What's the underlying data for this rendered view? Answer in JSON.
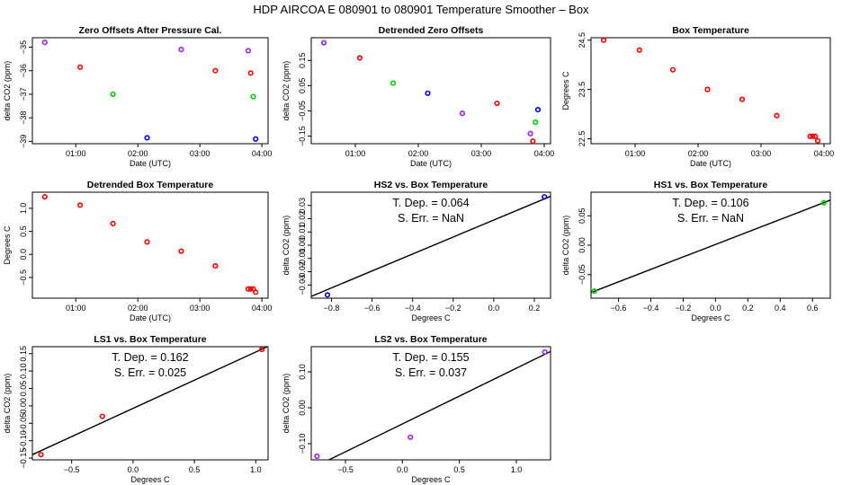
{
  "figure_title": "HDP   AIRCOA E   080901 to 080901   Temperature Smoother – Box",
  "chart_data": [
    {
      "id": "p1",
      "type": "scatter",
      "title": "Zero Offsets After Pressure Cal.",
      "xlabel": "Date (UTC)",
      "ylabel": "delta CO2 (ppm)",
      "xlim": [
        0.3,
        4.1
      ],
      "ylim": [
        -39.1,
        -34.6
      ],
      "xticks": [
        1,
        2,
        3,
        4
      ],
      "xticklabels": [
        "01:00",
        "02:00",
        "03:00",
        "04:00"
      ],
      "yticks": [
        -39,
        -38,
        -37,
        -36,
        -35
      ],
      "yticklabels": [
        "−39",
        "−38",
        "−37",
        "−36",
        "−35"
      ],
      "points": [
        {
          "x": 0.5,
          "y": -34.8,
          "color": "#a020f0"
        },
        {
          "x": 1.07,
          "y": -35.85,
          "color": "#ff0000"
        },
        {
          "x": 1.6,
          "y": -37.0,
          "color": "#00cc00"
        },
        {
          "x": 2.15,
          "y": -38.85,
          "color": "#0000ff"
        },
        {
          "x": 2.7,
          "y": -35.1,
          "color": "#a020f0"
        },
        {
          "x": 3.25,
          "y": -36.0,
          "color": "#ff0000"
        },
        {
          "x": 3.78,
          "y": -35.15,
          "color": "#a020f0"
        },
        {
          "x": 3.82,
          "y": -36.1,
          "color": "#ff0000"
        },
        {
          "x": 3.86,
          "y": -37.1,
          "color": "#00cc00"
        },
        {
          "x": 3.9,
          "y": -38.9,
          "color": "#0000ff"
        }
      ]
    },
    {
      "id": "p2",
      "type": "scatter",
      "title": "Detrended Zero Offsets",
      "xlabel": "Date (UTC)",
      "ylabel": "delta CO2 (ppm)",
      "xlim": [
        0.3,
        4.1
      ],
      "ylim": [
        -0.18,
        0.24
      ],
      "xticks": [
        1,
        2,
        3,
        4
      ],
      "xticklabels": [
        "01:00",
        "02:00",
        "03:00",
        "04:00"
      ],
      "yticks": [
        -0.15,
        -0.05,
        0.05,
        0.15
      ],
      "yticklabels": [
        "−0.15",
        "−0.05",
        "0.05",
        "0.15"
      ],
      "points": [
        {
          "x": 0.5,
          "y": 0.22,
          "color": "#a020f0"
        },
        {
          "x": 1.07,
          "y": 0.16,
          "color": "#ff0000"
        },
        {
          "x": 1.6,
          "y": 0.06,
          "color": "#00cc00"
        },
        {
          "x": 2.15,
          "y": 0.02,
          "color": "#0000ff"
        },
        {
          "x": 2.7,
          "y": -0.06,
          "color": "#a020f0"
        },
        {
          "x": 3.25,
          "y": -0.02,
          "color": "#ff0000"
        },
        {
          "x": 3.78,
          "y": -0.14,
          "color": "#a020f0"
        },
        {
          "x": 3.82,
          "y": -0.17,
          "color": "#ff0000"
        },
        {
          "x": 3.86,
          "y": -0.095,
          "color": "#00cc00"
        },
        {
          "x": 3.9,
          "y": -0.045,
          "color": "#0000ff"
        }
      ]
    },
    {
      "id": "p3",
      "type": "scatter",
      "title": "Box Temperature",
      "xlabel": "Date (UTC)",
      "ylabel": "Degrees C",
      "xlim": [
        0.3,
        4.1
      ],
      "ylim": [
        22.4,
        24.55
      ],
      "xticks": [
        1,
        2,
        3,
        4
      ],
      "xticklabels": [
        "01:00",
        "02:00",
        "03:00",
        "04:00"
      ],
      "yticks": [
        22.5,
        23.5,
        24.5
      ],
      "yticklabels": [
        "22.5",
        "23.5",
        "24.5"
      ],
      "points": [
        {
          "x": 0.5,
          "y": 24.5,
          "color": "#ff0000"
        },
        {
          "x": 1.07,
          "y": 24.3,
          "color": "#ff0000"
        },
        {
          "x": 1.6,
          "y": 23.9,
          "color": "#ff0000"
        },
        {
          "x": 2.15,
          "y": 23.5,
          "color": "#ff0000"
        },
        {
          "x": 2.7,
          "y": 23.3,
          "color": "#ff0000"
        },
        {
          "x": 3.25,
          "y": 22.97,
          "color": "#ff0000"
        },
        {
          "x": 3.78,
          "y": 22.55,
          "color": "#ff0000"
        },
        {
          "x": 3.82,
          "y": 22.55,
          "color": "#ff0000"
        },
        {
          "x": 3.86,
          "y": 22.55,
          "color": "#ff0000"
        },
        {
          "x": 3.9,
          "y": 22.46,
          "color": "#ff0000"
        }
      ]
    },
    {
      "id": "p4",
      "type": "scatter",
      "title": "Detrended Box Temperature",
      "xlabel": "Date (UTC)",
      "ylabel": "Degrees C",
      "xlim": [
        0.3,
        4.1
      ],
      "ylim": [
        -0.95,
        1.35
      ],
      "xticks": [
        1,
        2,
        3,
        4
      ],
      "xticklabels": [
        "01:00",
        "02:00",
        "03:00",
        "04:00"
      ],
      "yticks": [
        -0.5,
        0.0,
        0.5,
        1.0
      ],
      "yticklabels": [
        "−0.5",
        "0.0",
        "0.5",
        "1.0"
      ],
      "points": [
        {
          "x": 0.5,
          "y": 1.25,
          "color": "#ff0000"
        },
        {
          "x": 1.07,
          "y": 1.07,
          "color": "#ff0000"
        },
        {
          "x": 1.6,
          "y": 0.67,
          "color": "#ff0000"
        },
        {
          "x": 2.15,
          "y": 0.27,
          "color": "#ff0000"
        },
        {
          "x": 2.7,
          "y": 0.07,
          "color": "#ff0000"
        },
        {
          "x": 3.25,
          "y": -0.25,
          "color": "#ff0000"
        },
        {
          "x": 3.78,
          "y": -0.75,
          "color": "#ff0000"
        },
        {
          "x": 3.82,
          "y": -0.75,
          "color": "#ff0000"
        },
        {
          "x": 3.86,
          "y": -0.75,
          "color": "#ff0000"
        },
        {
          "x": 3.9,
          "y": -0.82,
          "color": "#ff0000"
        }
      ]
    },
    {
      "id": "p5",
      "type": "scatter",
      "title": "HS2 vs. Box Temperature",
      "xlabel": "Degrees C",
      "ylabel": "delta CO2 (ppm)",
      "annotation1": "T. Dep. =  0.064",
      "annotation2": "S. Err. =  NaN",
      "xlim": [
        -0.9,
        0.28
      ],
      "ylim": [
        -0.04,
        0.04
      ],
      "xticks": [
        -0.8,
        -0.6,
        -0.4,
        -0.2,
        0.0,
        0.2
      ],
      "xticklabels": [
        "−0.8",
        "−0.6",
        "−0.4",
        "−0.2",
        "0.0",
        "0.2"
      ],
      "yticks": [
        -0.03,
        -0.02,
        -0.01,
        0.0,
        0.01,
        0.02,
        0.03
      ],
      "yticklabels": [
        "−0.03",
        "−0.02",
        "−0.01",
        "0.00",
        "0.01",
        "0.02",
        "0.03"
      ],
      "fit": {
        "slope": 0.064,
        "intercept": 0.01898
      },
      "points": [
        {
          "x": -0.82,
          "y": -0.0375,
          "color": "#0000ff"
        },
        {
          "x": 0.25,
          "y": 0.0365,
          "color": "#0000ff"
        }
      ]
    },
    {
      "id": "p6",
      "type": "scatter",
      "title": "HS1 vs. Box Temperature",
      "xlabel": "Degrees C",
      "ylabel": "delta CO2 (ppm)",
      "annotation1": "T. Dep. =  0.106",
      "annotation2": "S. Err. =  NaN",
      "xlim": [
        -0.77,
        0.71
      ],
      "ylim": [
        -0.09,
        0.09
      ],
      "xticks": [
        -0.6,
        -0.4,
        -0.2,
        0.0,
        0.2,
        0.4,
        0.6
      ],
      "xticklabels": [
        "−0.6",
        "−0.4",
        "−0.2",
        "0.0",
        "0.2",
        "0.4",
        "0.6"
      ],
      "yticks": [
        -0.05,
        0.0,
        0.05
      ],
      "yticklabels": [
        "−0.05",
        "0.00",
        "0.05"
      ],
      "fit": {
        "slope": 0.106,
        "intercept": 0.00128
      },
      "points": [
        {
          "x": -0.75,
          "y": -0.078,
          "color": "#00cc00"
        },
        {
          "x": 0.67,
          "y": 0.072,
          "color": "#00cc00"
        }
      ]
    },
    {
      "id": "p7",
      "type": "scatter",
      "title": "LS1 vs. Box Temperature",
      "xlabel": "Degrees C",
      "ylabel": "delta CO2 (ppm)",
      "annotation1": "T. Dep. =  0.162",
      "annotation2": "S. Err. =  0.025",
      "xlim": [
        -0.82,
        1.1
      ],
      "ylim": [
        -0.155,
        0.17
      ],
      "xticks": [
        -0.5,
        0.0,
        0.5,
        1.0
      ],
      "xticklabels": [
        "−0.5",
        "0.0",
        "0.5",
        "1.0"
      ],
      "yticks": [
        -0.15,
        -0.1,
        -0.05,
        0.0,
        0.05,
        0.1,
        0.15
      ],
      "yticklabels": [
        "−0.15",
        "−0.10",
        "−0.05",
        "0.00",
        "0.05",
        "0.10",
        "0.15"
      ],
      "fit": {
        "slope": 0.162,
        "intercept": -0.0072
      },
      "points": [
        {
          "x": -0.75,
          "y": -0.14,
          "color": "#ff0000"
        },
        {
          "x": -0.25,
          "y": -0.03,
          "color": "#ff0000"
        },
        {
          "x": 1.05,
          "y": 0.162,
          "color": "#ff0000"
        }
      ]
    },
    {
      "id": "p8",
      "type": "scatter",
      "title": "LS2 vs. Box Temperature",
      "xlabel": "Degrees C",
      "ylabel": "delta CO2 (ppm)",
      "annotation1": "T. Dep. =  0.155",
      "annotation2": "S. Err. =  0.037",
      "xlim": [
        -0.8,
        1.3
      ],
      "ylim": [
        -0.145,
        0.17
      ],
      "xticks": [
        -0.5,
        0.0,
        0.5,
        1.0
      ],
      "xticklabels": [
        "−0.5",
        "0.0",
        "0.5",
        "1.0"
      ],
      "yticks": [
        -0.1,
        0.0,
        0.1
      ],
      "yticklabels": [
        "−0.10",
        "0.00",
        "0.10"
      ],
      "fit": {
        "slope": 0.155,
        "intercept": -0.045
      },
      "points": [
        {
          "x": -0.75,
          "y": -0.135,
          "color": "#a020f0"
        },
        {
          "x": 0.07,
          "y": -0.082,
          "color": "#a020f0"
        },
        {
          "x": 1.25,
          "y": 0.155,
          "color": "#a020f0"
        }
      ]
    }
  ]
}
